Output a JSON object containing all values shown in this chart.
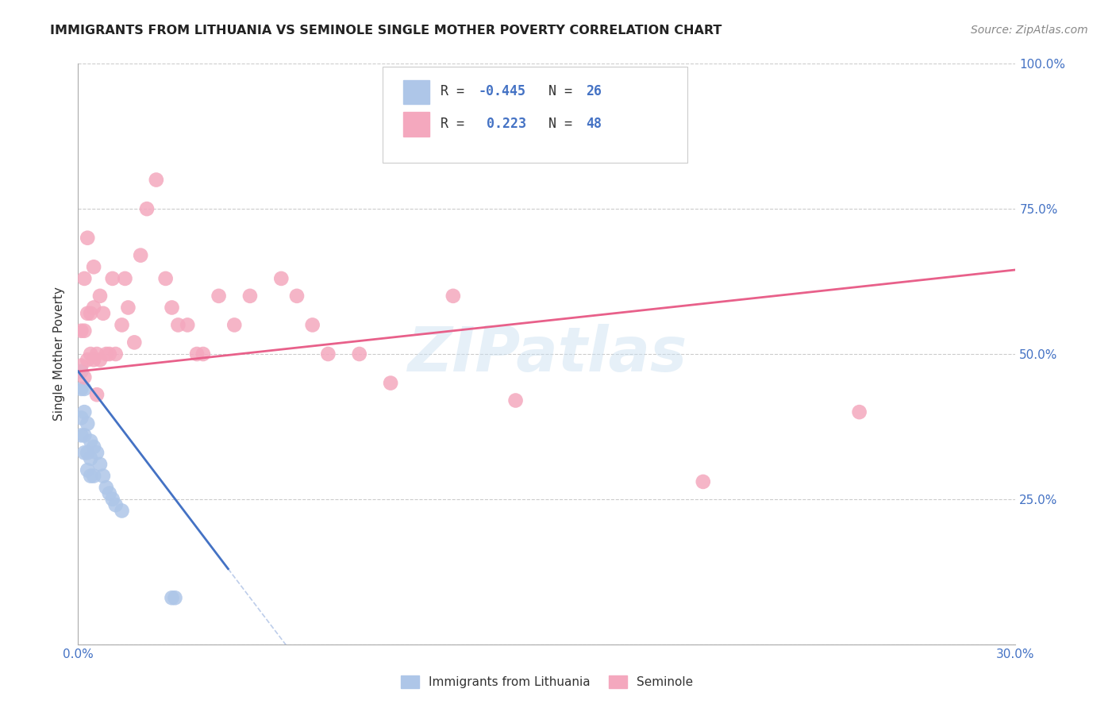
{
  "title": "IMMIGRANTS FROM LITHUANIA VS SEMINOLE SINGLE MOTHER POVERTY CORRELATION CHART",
  "source": "Source: ZipAtlas.com",
  "ylabel": "Single Mother Poverty",
  "legend_label1": "Immigrants from Lithuania",
  "legend_label2": "Seminole",
  "R1": "-0.445",
  "N1": "26",
  "R2": "0.223",
  "N2": "48",
  "color_blue": "#aec6e8",
  "color_pink": "#f4a8be",
  "line_blue": "#4472c4",
  "line_pink": "#e8608a",
  "watermark": "ZIPatlas",
  "background_color": "#ffffff",
  "blue_x": [
    0.001,
    0.001,
    0.001,
    0.001,
    0.002,
    0.002,
    0.002,
    0.002,
    0.003,
    0.003,
    0.003,
    0.004,
    0.004,
    0.004,
    0.005,
    0.005,
    0.006,
    0.007,
    0.008,
    0.009,
    0.01,
    0.011,
    0.012,
    0.014,
    0.03,
    0.031
  ],
  "blue_y": [
    0.47,
    0.44,
    0.39,
    0.36,
    0.44,
    0.4,
    0.36,
    0.33,
    0.38,
    0.33,
    0.3,
    0.35,
    0.32,
    0.29,
    0.34,
    0.29,
    0.33,
    0.31,
    0.29,
    0.27,
    0.26,
    0.25,
    0.24,
    0.23,
    0.08,
    0.08
  ],
  "pink_x": [
    0.001,
    0.001,
    0.002,
    0.002,
    0.002,
    0.003,
    0.003,
    0.003,
    0.004,
    0.004,
    0.005,
    0.005,
    0.005,
    0.006,
    0.006,
    0.007,
    0.007,
    0.008,
    0.009,
    0.01,
    0.011,
    0.012,
    0.014,
    0.015,
    0.016,
    0.018,
    0.02,
    0.022,
    0.025,
    0.028,
    0.03,
    0.032,
    0.035,
    0.038,
    0.04,
    0.045,
    0.05,
    0.055,
    0.065,
    0.07,
    0.075,
    0.08,
    0.09,
    0.1,
    0.12,
    0.14,
    0.2,
    0.25
  ],
  "pink_y": [
    0.54,
    0.48,
    0.63,
    0.54,
    0.46,
    0.7,
    0.57,
    0.49,
    0.57,
    0.5,
    0.65,
    0.58,
    0.49,
    0.5,
    0.43,
    0.6,
    0.49,
    0.57,
    0.5,
    0.5,
    0.63,
    0.5,
    0.55,
    0.63,
    0.58,
    0.52,
    0.67,
    0.75,
    0.8,
    0.63,
    0.58,
    0.55,
    0.55,
    0.5,
    0.5,
    0.6,
    0.55,
    0.6,
    0.63,
    0.6,
    0.55,
    0.5,
    0.5,
    0.45,
    0.6,
    0.42,
    0.28,
    0.4
  ],
  "xmin": 0.0,
  "xmax": 0.3,
  "ymin": 0.0,
  "ymax": 1.0,
  "pink_line_x0": 0.0,
  "pink_line_y0": 0.47,
  "pink_line_x1": 0.3,
  "pink_line_y1": 0.645,
  "blue_line_x0": 0.0,
  "blue_line_y0": 0.47,
  "blue_line_x1": 0.048,
  "blue_line_y1": 0.13
}
